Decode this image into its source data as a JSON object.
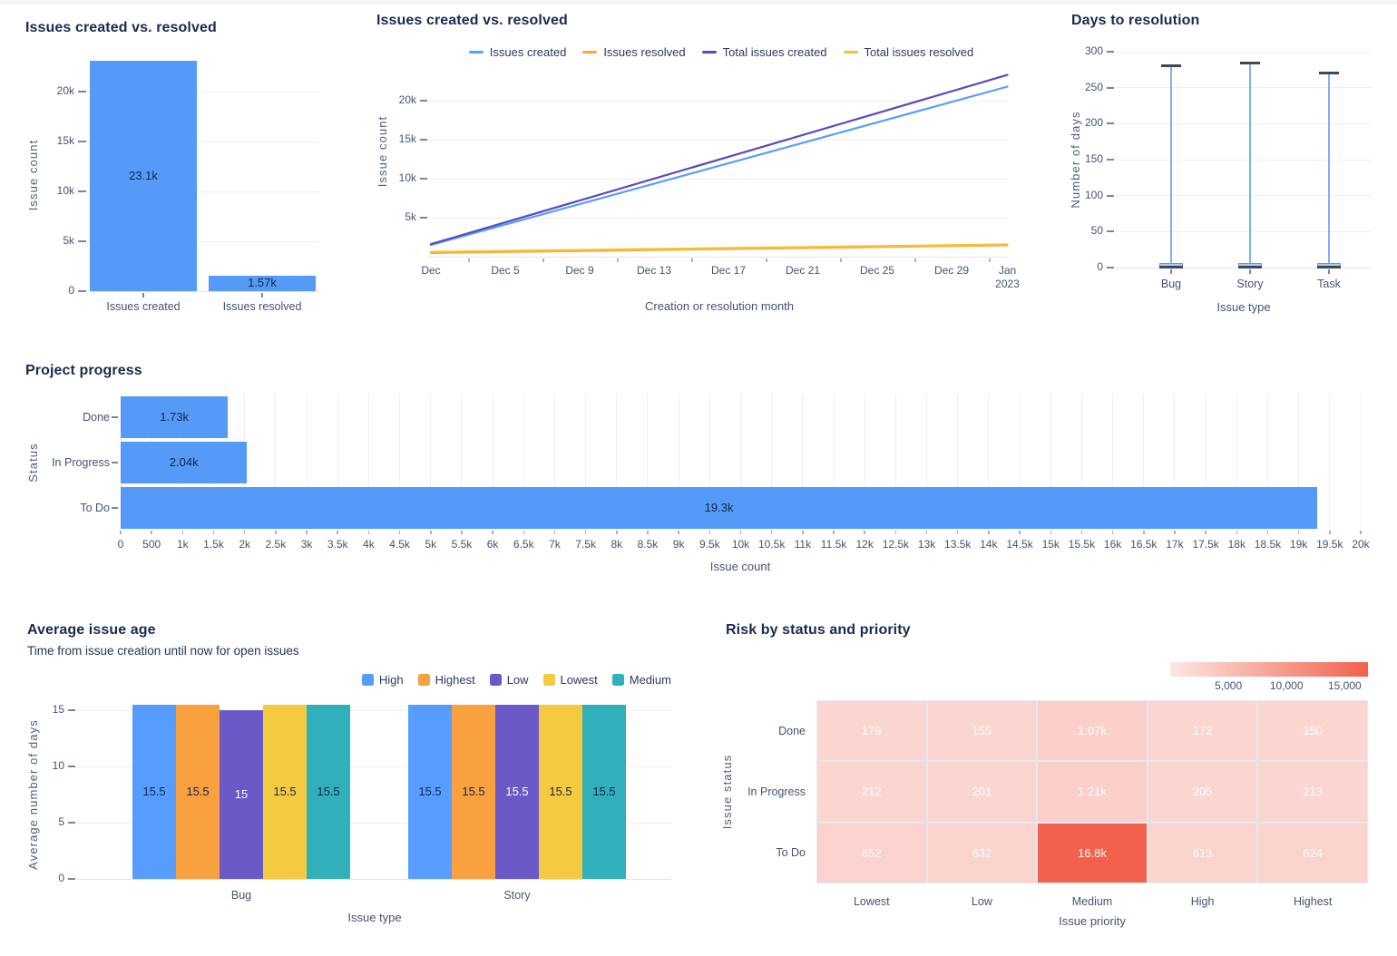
{
  "page": {
    "background": "#ffffff"
  },
  "chart_data": [
    {
      "id": "issues-created-vs-resolved-bar",
      "type": "bar",
      "title": "Issues created vs. resolved",
      "xlabel": "",
      "ylabel": "Issue count",
      "categories": [
        "Issues created",
        "Issues resolved"
      ],
      "values": [
        23100,
        1570
      ],
      "value_labels": [
        "23.1k",
        "1.57k"
      ],
      "yticks": {
        "values": [
          0,
          5000,
          10000,
          15000,
          20000
        ],
        "labels": [
          "0",
          "5k",
          "10k",
          "15k",
          "20k"
        ]
      },
      "ylim": [
        0,
        23400
      ],
      "bar_color": "#549AF6",
      "grid": true
    },
    {
      "id": "issues-created-vs-resolved-line",
      "type": "line",
      "title": "Issues created vs. resolved",
      "xlabel": "Creation or resolution month",
      "ylabel": "Issue count",
      "legend_position": "top",
      "xlim": [
        0,
        31
      ],
      "ylim": [
        0,
        24000
      ],
      "xticks": {
        "days": [
          0,
          4,
          8,
          12,
          16,
          20,
          24,
          28,
          31
        ],
        "labels": [
          "Dec",
          "Dec 5",
          "Dec 9",
          "Dec 13",
          "Dec 17",
          "Dec 21",
          "Dec 25",
          "Dec 29",
          "Jan\n2023"
        ]
      },
      "yticks": {
        "values": [
          5000,
          10000,
          15000,
          20000
        ],
        "labels": [
          "5k",
          "10k",
          "15k",
          "20k"
        ]
      },
      "series": [
        {
          "name": "Issues created",
          "color": "#579DFF",
          "points": [
            [
              0,
              1500
            ],
            [
              31,
              21800
            ]
          ]
        },
        {
          "name": "Issues resolved",
          "color": "#FAA53D",
          "points": [
            [
              0,
              480
            ],
            [
              31,
              1460
            ]
          ]
        },
        {
          "name": "Total issues created",
          "color": "#5B49BE",
          "points": [
            [
              0,
              1600
            ],
            [
              31,
              23300
            ]
          ]
        },
        {
          "name": "Total issues resolved",
          "color": "#F5C12F",
          "points": [
            [
              0,
              620
            ],
            [
              31,
              1570
            ]
          ]
        }
      ]
    },
    {
      "id": "days-to-resolution",
      "type": "boxplot",
      "title": "Days to resolution",
      "xlabel": "Issue type",
      "ylabel": "Number of days",
      "categories": [
        "Bug",
        "Story",
        "Task"
      ],
      "items": [
        {
          "max": 281,
          "q3": 6,
          "median": 1.2,
          "q1": 0.3
        },
        {
          "max": 284,
          "q3": 6,
          "median": 1.2,
          "q1": 0.3
        },
        {
          "max": 271,
          "q3": 6,
          "median": 1.2,
          "q1": 0.3
        }
      ],
      "yticks": {
        "values": [
          0,
          50,
          100,
          150,
          200,
          250,
          300
        ],
        "labels": [
          "0",
          "50",
          "100",
          "150",
          "200",
          "250",
          "300"
        ]
      },
      "ylim": [
        0,
        300
      ]
    },
    {
      "id": "project-progress",
      "type": "hbar",
      "title": "Project progress",
      "xlabel": "Issue count",
      "ylabel": "Status",
      "categories": [
        "Done",
        "In Progress",
        "To Do"
      ],
      "values": [
        1730,
        2040,
        19300
      ],
      "value_labels": [
        "1.73k",
        "2.04k",
        "19.3k"
      ],
      "xlim": [
        0,
        20000
      ],
      "xticks": {
        "step": 500,
        "labels": [
          "0",
          "500",
          "1k",
          "1.5k",
          "2k",
          "2.5k",
          "3k",
          "3.5k",
          "4k",
          "4.5k",
          "5k",
          "5.5k",
          "6k",
          "6.5k",
          "7k",
          "7.5k",
          "8k",
          "8.5k",
          "9k",
          "9.5k",
          "10k",
          "10.5k",
          "11k",
          "11.5k",
          "12k",
          "12.5k",
          "13k",
          "13.5k",
          "14k",
          "14.5k",
          "15k",
          "15.5k",
          "16k",
          "16.5k",
          "17k",
          "17.5k",
          "18k",
          "18.5k",
          "19k",
          "19.5k",
          "20k"
        ]
      },
      "bar_color": "#549AF6"
    },
    {
      "id": "average-issue-age",
      "type": "grouped_bar",
      "title": "Average issue age",
      "subtitle": "Time from issue creation until now for open issues",
      "xlabel": "Issue type",
      "ylabel": "Average number of days",
      "categories": [
        "Bug",
        "Story"
      ],
      "yticks": {
        "values": [
          0,
          5,
          10,
          15
        ],
        "labels": [
          "0",
          "5",
          "10",
          "15"
        ]
      },
      "ylim": [
        0,
        15.9
      ],
      "series": [
        {
          "name": "High",
          "color": "#579DFF",
          "values": [
            15.5,
            15.5
          ],
          "label_color": "dark"
        },
        {
          "name": "Highest",
          "color": "#F9A03F",
          "values": [
            15.5,
            15.5
          ],
          "label_color": "dark"
        },
        {
          "name": "Low",
          "color": "#6B59C8",
          "values": [
            15,
            15.5
          ],
          "label_color": "white"
        },
        {
          "name": "Lowest",
          "color": "#F4CB40",
          "values": [
            15.5,
            15.5
          ],
          "label_color": "dark"
        },
        {
          "name": "Medium",
          "color": "#31AFBB",
          "values": [
            15.5,
            15.5
          ],
          "label_color": "dark"
        }
      ],
      "value_labels": [
        [
          "15.5",
          "15.5",
          "15",
          "15.5",
          "15.5"
        ],
        [
          "15.5",
          "15.5",
          "15.5",
          "15.5",
          "15.5"
        ]
      ]
    },
    {
      "id": "risk-by-status-and-priority",
      "type": "heatmap",
      "title": "Risk by status and priority",
      "xlabel": "Issue priority",
      "ylabel": "Issue status",
      "rows": [
        "Done",
        "In Progress",
        "To Do"
      ],
      "columns": [
        "Lowest",
        "Low",
        "Medium",
        "High",
        "Highest"
      ],
      "values": [
        [
          179,
          155,
          1070,
          172,
          150
        ],
        [
          212,
          201,
          1210,
          205,
          213
        ],
        [
          652,
          632,
          16800,
          613,
          624
        ]
      ],
      "cell_labels": [
        [
          "179",
          "155",
          "1.07k",
          "172",
          "150"
        ],
        [
          "212",
          "201",
          "1.21k",
          "205",
          "213"
        ],
        [
          "652",
          "632",
          "16.8k",
          "613",
          "624"
        ]
      ],
      "scale": {
        "min": 150,
        "max": 16800,
        "min_color": "#FBD6D1",
        "max_color": "#F3604C"
      },
      "colorbar": {
        "labels": [
          "5,000",
          "10,000",
          "15,000"
        ],
        "values": [
          5000,
          10000,
          15000
        ],
        "axis_max": 17000,
        "gradient": [
          "#FCE7E3",
          "#F3604C"
        ]
      }
    }
  ]
}
